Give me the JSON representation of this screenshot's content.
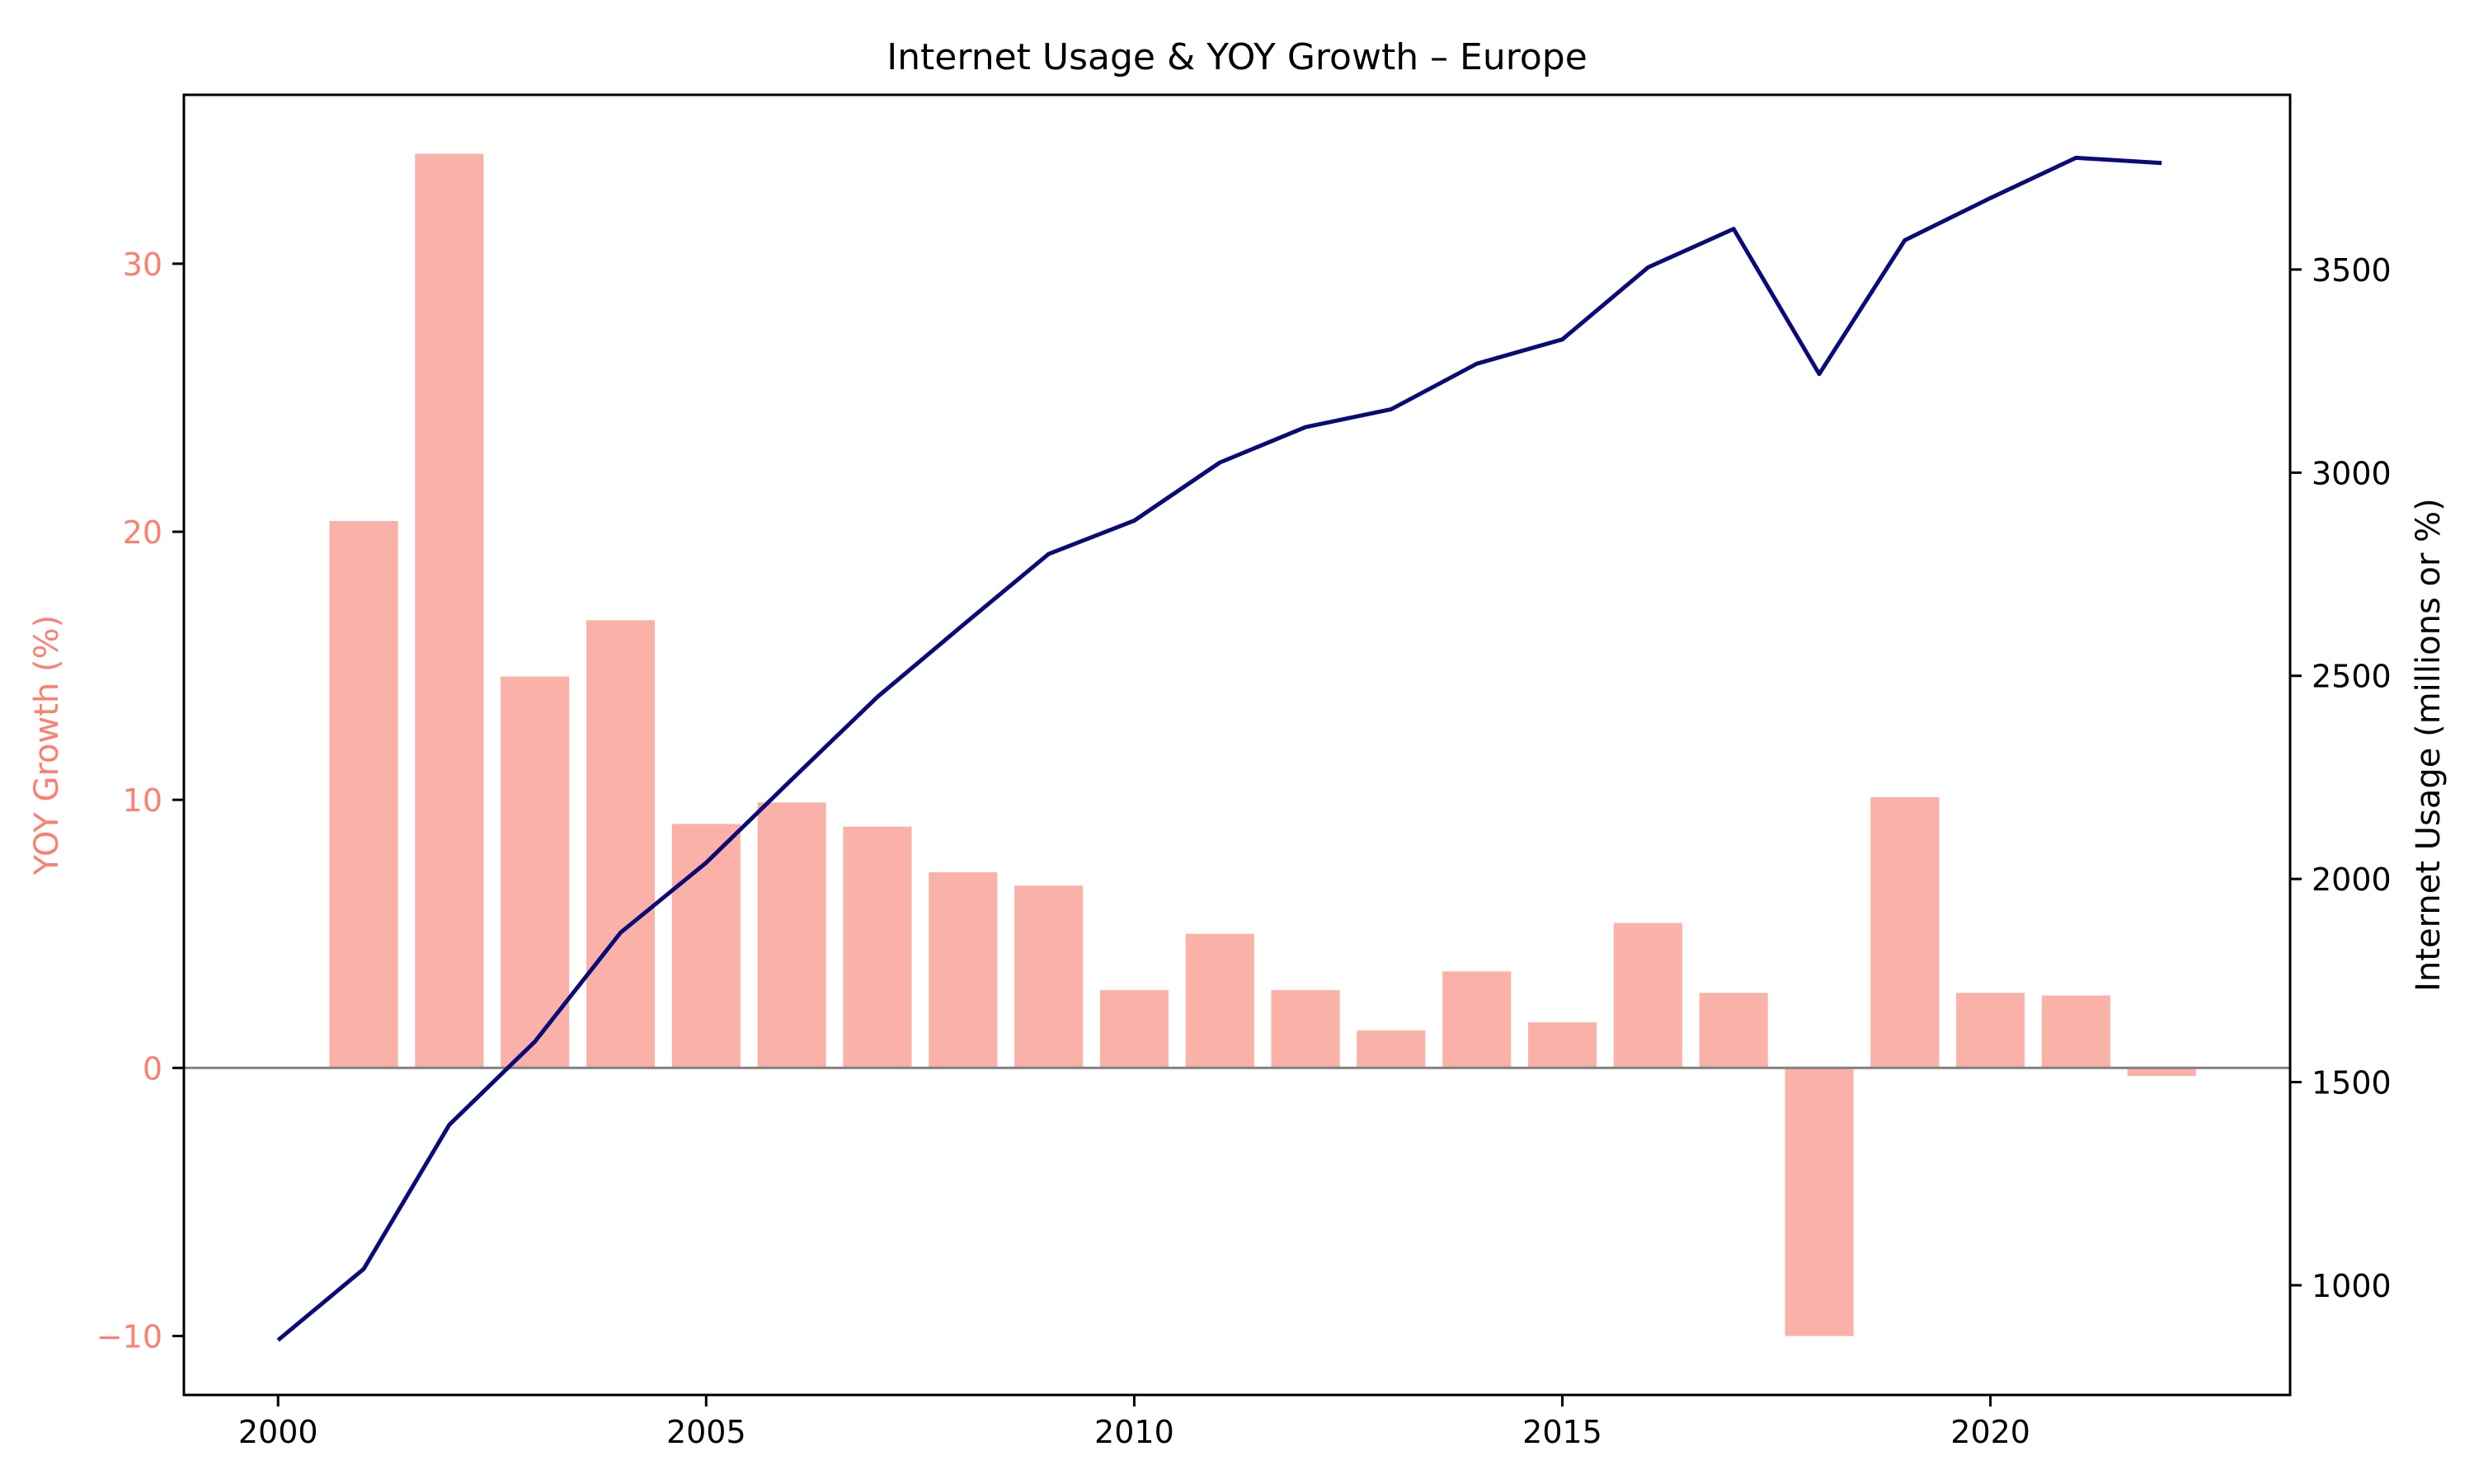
{
  "chart_data": {
    "type": "bar",
    "title": "Internet Usage & YOY Growth – Europe",
    "xlabel": "",
    "x_ticks": [
      2000,
      2005,
      2010,
      2015,
      2020
    ],
    "xlim": [
      1998.9,
      2023.5
    ],
    "y_left": {
      "label": "YOY Growth (%)",
      "ticks": [
        -10,
        0,
        10,
        20,
        30
      ],
      "tick_labels": [
        "−10",
        "0",
        "10",
        "20",
        "30"
      ],
      "range": [
        -12.2,
        36.3
      ]
    },
    "y_right": {
      "label": "Internet Usage (millions or %)",
      "ticks": [
        1000,
        1500,
        2000,
        2500,
        3000,
        3500
      ],
      "tick_labels": [
        "1000",
        "1500",
        "2000",
        "2500",
        "3000",
        "3500"
      ],
      "range": [
        730,
        3930
      ]
    },
    "series": [
      {
        "type": "bar",
        "axis": "left",
        "years": [
          2001,
          2002,
          2003,
          2004,
          2005,
          2006,
          2007,
          2008,
          2009,
          2010,
          2011,
          2012,
          2013,
          2014,
          2015,
          2016,
          2017,
          2018,
          2019,
          2020,
          2021,
          2022
        ],
        "values": [
          20.4,
          34.1,
          14.6,
          16.7,
          9.1,
          9.9,
          9.0,
          7.3,
          6.8,
          2.9,
          5.0,
          2.9,
          1.4,
          3.6,
          1.7,
          5.4,
          2.8,
          -10.0,
          10.1,
          2.8,
          2.7,
          -0.3
        ]
      },
      {
        "type": "line",
        "axis": "right",
        "years": [
          2000,
          2001,
          2002,
          2003,
          2004,
          2005,
          2006,
          2007,
          2008,
          2009,
          2010,
          2011,
          2012,
          2013,
          2014,
          2015,
          2016,
          2017,
          2018,
          2019,
          2020,
          2021,
          2022
        ],
        "values": [
          865,
          1040,
          1395,
          1600,
          1868,
          2040,
          2245,
          2448,
          2625,
          2800,
          2882,
          3025,
          3112,
          3156,
          3268,
          3328,
          3505,
          3600,
          3243,
          3572,
          3676,
          3775,
          3762
        ]
      }
    ],
    "colors": {
      "bar": "#FAB1A8",
      "line": "#0A0A78",
      "left_axis_text": "#FA8072",
      "zero_line": "#808080",
      "axis": "#000000"
    },
    "grid": false
  }
}
